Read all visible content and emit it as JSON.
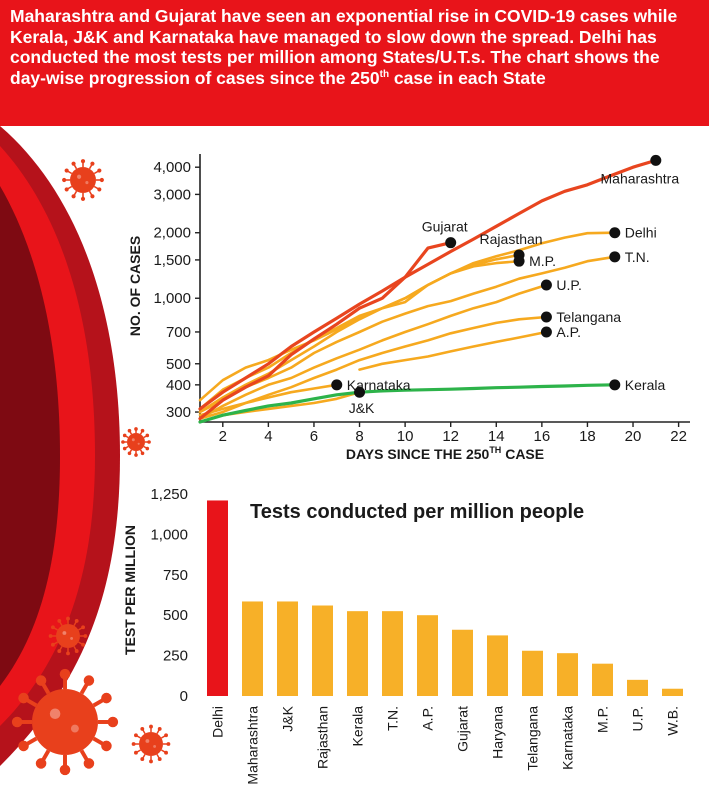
{
  "header": {
    "text_before_sup": "Maharashtra and Gujarat have seen an exponential rise in COVID-19 cases while Kerala, J&K and Karnataka have managed to slow down the spread. Delhi has conducted the most tests per million among States/U.T.s. The chart shows the day-wise progression of cases since the 250",
    "sup": "th",
    "text_after_sup": " case in each State"
  },
  "colors": {
    "banner": "#e8141a",
    "red_line": "#e8451f",
    "orange_line": "#f6a91f",
    "green_line": "#2db34a",
    "bar_red": "#e8141a",
    "bar_orange": "#f7b028",
    "text": "#1a1a1a",
    "virus": "#e8401c"
  },
  "decor": {
    "virus_icon_name": "coronavirus-icon"
  },
  "chart_data": [
    {
      "type": "line",
      "title": "",
      "xlabel": "DAYS SINCE THE 250",
      "xlabel_sup": "TH",
      "xlabel_suffix": " CASE",
      "ylabel": "NO. OF CASES",
      "yscale": "log",
      "xlim": [
        1,
        22.5
      ],
      "ylim": [
        270,
        4600
      ],
      "xticks": [
        2,
        4,
        6,
        8,
        10,
        12,
        14,
        16,
        18,
        20,
        22
      ],
      "xtick_labels": [
        "2",
        "4",
        "6",
        "8",
        "10",
        "12",
        "14",
        "16",
        "18",
        "20",
        "22"
      ],
      "yticks": [
        300,
        400,
        500,
        700,
        1000,
        1500,
        2000,
        3000,
        4000
      ],
      "ytick_labels": [
        "300",
        "400",
        "500",
        "700",
        "1,000",
        "1,500",
        "2,000",
        "3,000",
        "4,000"
      ],
      "series": [
        {
          "name": "Maharashtra",
          "label": "Maharashtra",
          "color": "red",
          "endpoint_x": 21,
          "endpoint_y": 4300,
          "label_side": "below",
          "x": [
            1,
            2,
            3,
            4,
            5,
            6,
            7,
            8,
            9,
            10,
            11,
            12,
            13,
            14,
            15,
            16,
            17,
            18,
            19,
            20,
            21
          ],
          "y": [
            310,
            370,
            430,
            500,
            600,
            700,
            810,
            940,
            1080,
            1250,
            1430,
            1640,
            1870,
            2140,
            2450,
            2800,
            3100,
            3320,
            3650,
            4000,
            4300
          ]
        },
        {
          "name": "Gujarat",
          "label": "Gujarat",
          "color": "red",
          "endpoint_x": 12,
          "endpoint_y": 1800,
          "label_side": "above",
          "x": [
            1,
            2,
            3,
            4,
            5,
            6,
            7,
            8,
            9,
            10,
            11,
            12
          ],
          "y": [
            280,
            340,
            390,
            440,
            550,
            650,
            760,
            900,
            1000,
            1250,
            1700,
            1800
          ]
        },
        {
          "name": "Delhi",
          "label": "Delhi",
          "color": "orange",
          "endpoint_x": 19.2,
          "endpoint_y": 2000,
          "label_side": "right",
          "x": [
            1,
            2,
            3,
            4,
            5,
            6,
            7,
            8,
            9,
            10,
            11,
            12,
            13,
            14,
            15,
            16,
            17,
            18,
            19.2
          ],
          "y": [
            310,
            380,
            430,
            480,
            560,
            650,
            730,
            830,
            900,
            1000,
            1150,
            1300,
            1450,
            1560,
            1660,
            1790,
            1900,
            1990,
            2000
          ]
        },
        {
          "name": "Rajasthan",
          "label": "Rajasthan",
          "color": "orange",
          "endpoint_x": 15,
          "endpoint_y": 1580,
          "label_side": "above",
          "x": [
            1,
            2,
            3,
            4,
            5,
            6,
            7,
            8,
            9,
            10,
            11,
            12,
            13,
            14,
            15
          ],
          "y": [
            300,
            350,
            400,
            450,
            520,
            600,
            700,
            800,
            900,
            1000,
            1150,
            1300,
            1420,
            1510,
            1580
          ]
        },
        {
          "name": "M.P.",
          "label": "M.P.",
          "color": "orange",
          "endpoint_x": 15,
          "endpoint_y": 1480,
          "label_side": "right",
          "x": [
            1,
            2,
            3,
            4,
            5,
            6,
            7,
            8,
            9,
            10,
            11,
            12,
            13,
            14,
            15
          ],
          "y": [
            340,
            420,
            480,
            520,
            580,
            640,
            720,
            820,
            900,
            960,
            1150,
            1300,
            1400,
            1450,
            1480
          ]
        },
        {
          "name": "T.N.",
          "label": "T.N.",
          "color": "orange",
          "endpoint_x": 19.2,
          "endpoint_y": 1550,
          "label_side": "right",
          "x": [
            1,
            2,
            3,
            4,
            5,
            6,
            7,
            8,
            9,
            10,
            11,
            12,
            13,
            14,
            15,
            16,
            17,
            18,
            19.2
          ],
          "y": [
            300,
            340,
            390,
            430,
            480,
            560,
            630,
            700,
            780,
            850,
            920,
            970,
            1050,
            1130,
            1230,
            1300,
            1380,
            1480,
            1550
          ]
        },
        {
          "name": "U.P.",
          "label": "U.P.",
          "color": "orange",
          "endpoint_x": 16.2,
          "endpoint_y": 1150,
          "label_side": "right",
          "x": [
            1,
            2,
            3,
            4,
            5,
            6,
            7,
            8,
            9,
            10,
            11,
            12,
            13,
            14,
            15,
            16.2
          ],
          "y": [
            280,
            320,
            360,
            400,
            430,
            480,
            530,
            580,
            640,
            700,
            760,
            830,
            900,
            960,
            1050,
            1150
          ]
        },
        {
          "name": "Telangana",
          "label": "Telangana",
          "color": "orange",
          "endpoint_x": 16.2,
          "endpoint_y": 820,
          "label_side": "right",
          "x": [
            1,
            2,
            3,
            4,
            5,
            6,
            7,
            8,
            9,
            10,
            11,
            12,
            13,
            14,
            15,
            16.2
          ],
          "y": [
            280,
            300,
            330,
            360,
            390,
            430,
            470,
            520,
            560,
            600,
            640,
            690,
            730,
            770,
            800,
            820
          ]
        },
        {
          "name": "A.P.",
          "label": "A.P.",
          "color": "orange",
          "endpoint_x": 16.2,
          "endpoint_y": 700,
          "label_side": "right",
          "x": [
            8,
            9,
            10,
            11,
            12,
            13,
            14,
            15,
            16.2
          ],
          "y": [
            470,
            500,
            520,
            540,
            570,
            600,
            630,
            660,
            700
          ]
        },
        {
          "name": "Karnataka",
          "label": "Karnataka",
          "color": "orange",
          "endpoint_x": 7,
          "endpoint_y": 400,
          "label_side": "right",
          "x": [
            1,
            2,
            3,
            4,
            5,
            6,
            7
          ],
          "y": [
            290,
            310,
            330,
            350,
            370,
            385,
            400
          ]
        },
        {
          "name": "J&K",
          "label": "J&K",
          "color": "orange",
          "endpoint_x": 8,
          "endpoint_y": 370,
          "label_side": "below",
          "x": [
            1,
            2,
            3,
            4,
            5,
            6,
            7,
            8
          ],
          "y": [
            270,
            290,
            300,
            310,
            320,
            330,
            345,
            370
          ]
        },
        {
          "name": "Kerala",
          "label": "Kerala",
          "color": "green",
          "endpoint_x": 19.2,
          "endpoint_y": 400,
          "label_side": "right",
          "x": [
            1,
            2,
            3,
            4,
            5,
            6,
            7,
            8,
            9,
            10,
            11,
            12,
            13,
            14,
            15,
            16,
            17,
            18,
            19.2
          ],
          "y": [
            270,
            290,
            305,
            320,
            330,
            345,
            360,
            370,
            375,
            378,
            380,
            382,
            385,
            388,
            390,
            393,
            395,
            398,
            400
          ]
        }
      ]
    },
    {
      "type": "bar",
      "title": "Tests conducted per million people",
      "xlabel": "",
      "ylabel": "TEST PER MILLION",
      "ylim": [
        0,
        1250
      ],
      "yticks": [
        0,
        250,
        500,
        750,
        1000,
        1250
      ],
      "ytick_labels": [
        "0",
        "250",
        "500",
        "750",
        "1,000",
        "1,250"
      ],
      "categories": [
        "Delhi",
        "Maharashtra",
        "J&K",
        "Rajasthan",
        "Kerala",
        "T.N.",
        "A.P.",
        "Gujarat",
        "Haryana",
        "Telangana",
        "Karnataka",
        "M.P.",
        "U.P.",
        "W.B."
      ],
      "values": [
        1210,
        585,
        585,
        560,
        525,
        525,
        500,
        410,
        375,
        280,
        265,
        200,
        100,
        45
      ],
      "highlight": "Delhi"
    }
  ]
}
